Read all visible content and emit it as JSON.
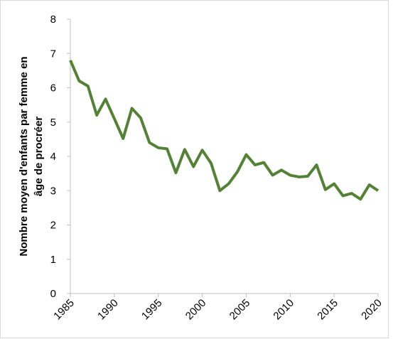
{
  "chart_data": {
    "type": "line",
    "ylabel": [
      "Nombre moyen d'enfants par femme en",
      "âge de procréer"
    ],
    "x": [
      1985,
      1986,
      1987,
      1988,
      1989,
      1990,
      1991,
      1992,
      1993,
      1994,
      1995,
      1996,
      1997,
      1998,
      1999,
      2000,
      2001,
      2002,
      2003,
      2004,
      2005,
      2006,
      2007,
      2008,
      2009,
      2010,
      2011,
      2012,
      2013,
      2014,
      2015,
      2016,
      2017,
      2018,
      2019,
      2020
    ],
    "series": [
      {
        "color": "#548235",
        "values": [
          6.8,
          6.2,
          6.05,
          5.2,
          5.67,
          5.1,
          4.52,
          5.4,
          5.12,
          4.4,
          4.25,
          4.22,
          3.52,
          4.2,
          3.7,
          4.18,
          3.8,
          3.0,
          3.2,
          3.55,
          4.05,
          3.75,
          3.82,
          3.45,
          3.6,
          3.45,
          3.4,
          3.42,
          3.75,
          3.03,
          3.2,
          2.85,
          2.92,
          2.75,
          3.17,
          3.0
        ]
      }
    ],
    "xlim": [
      1985,
      2020
    ],
    "xticks": [
      1985,
      1990,
      1995,
      2000,
      2005,
      2010,
      2015,
      2020
    ],
    "ylim": [
      0,
      8
    ],
    "yticks": [
      0,
      1,
      2,
      3,
      4,
      5,
      6,
      7,
      8
    ],
    "grid": false
  }
}
